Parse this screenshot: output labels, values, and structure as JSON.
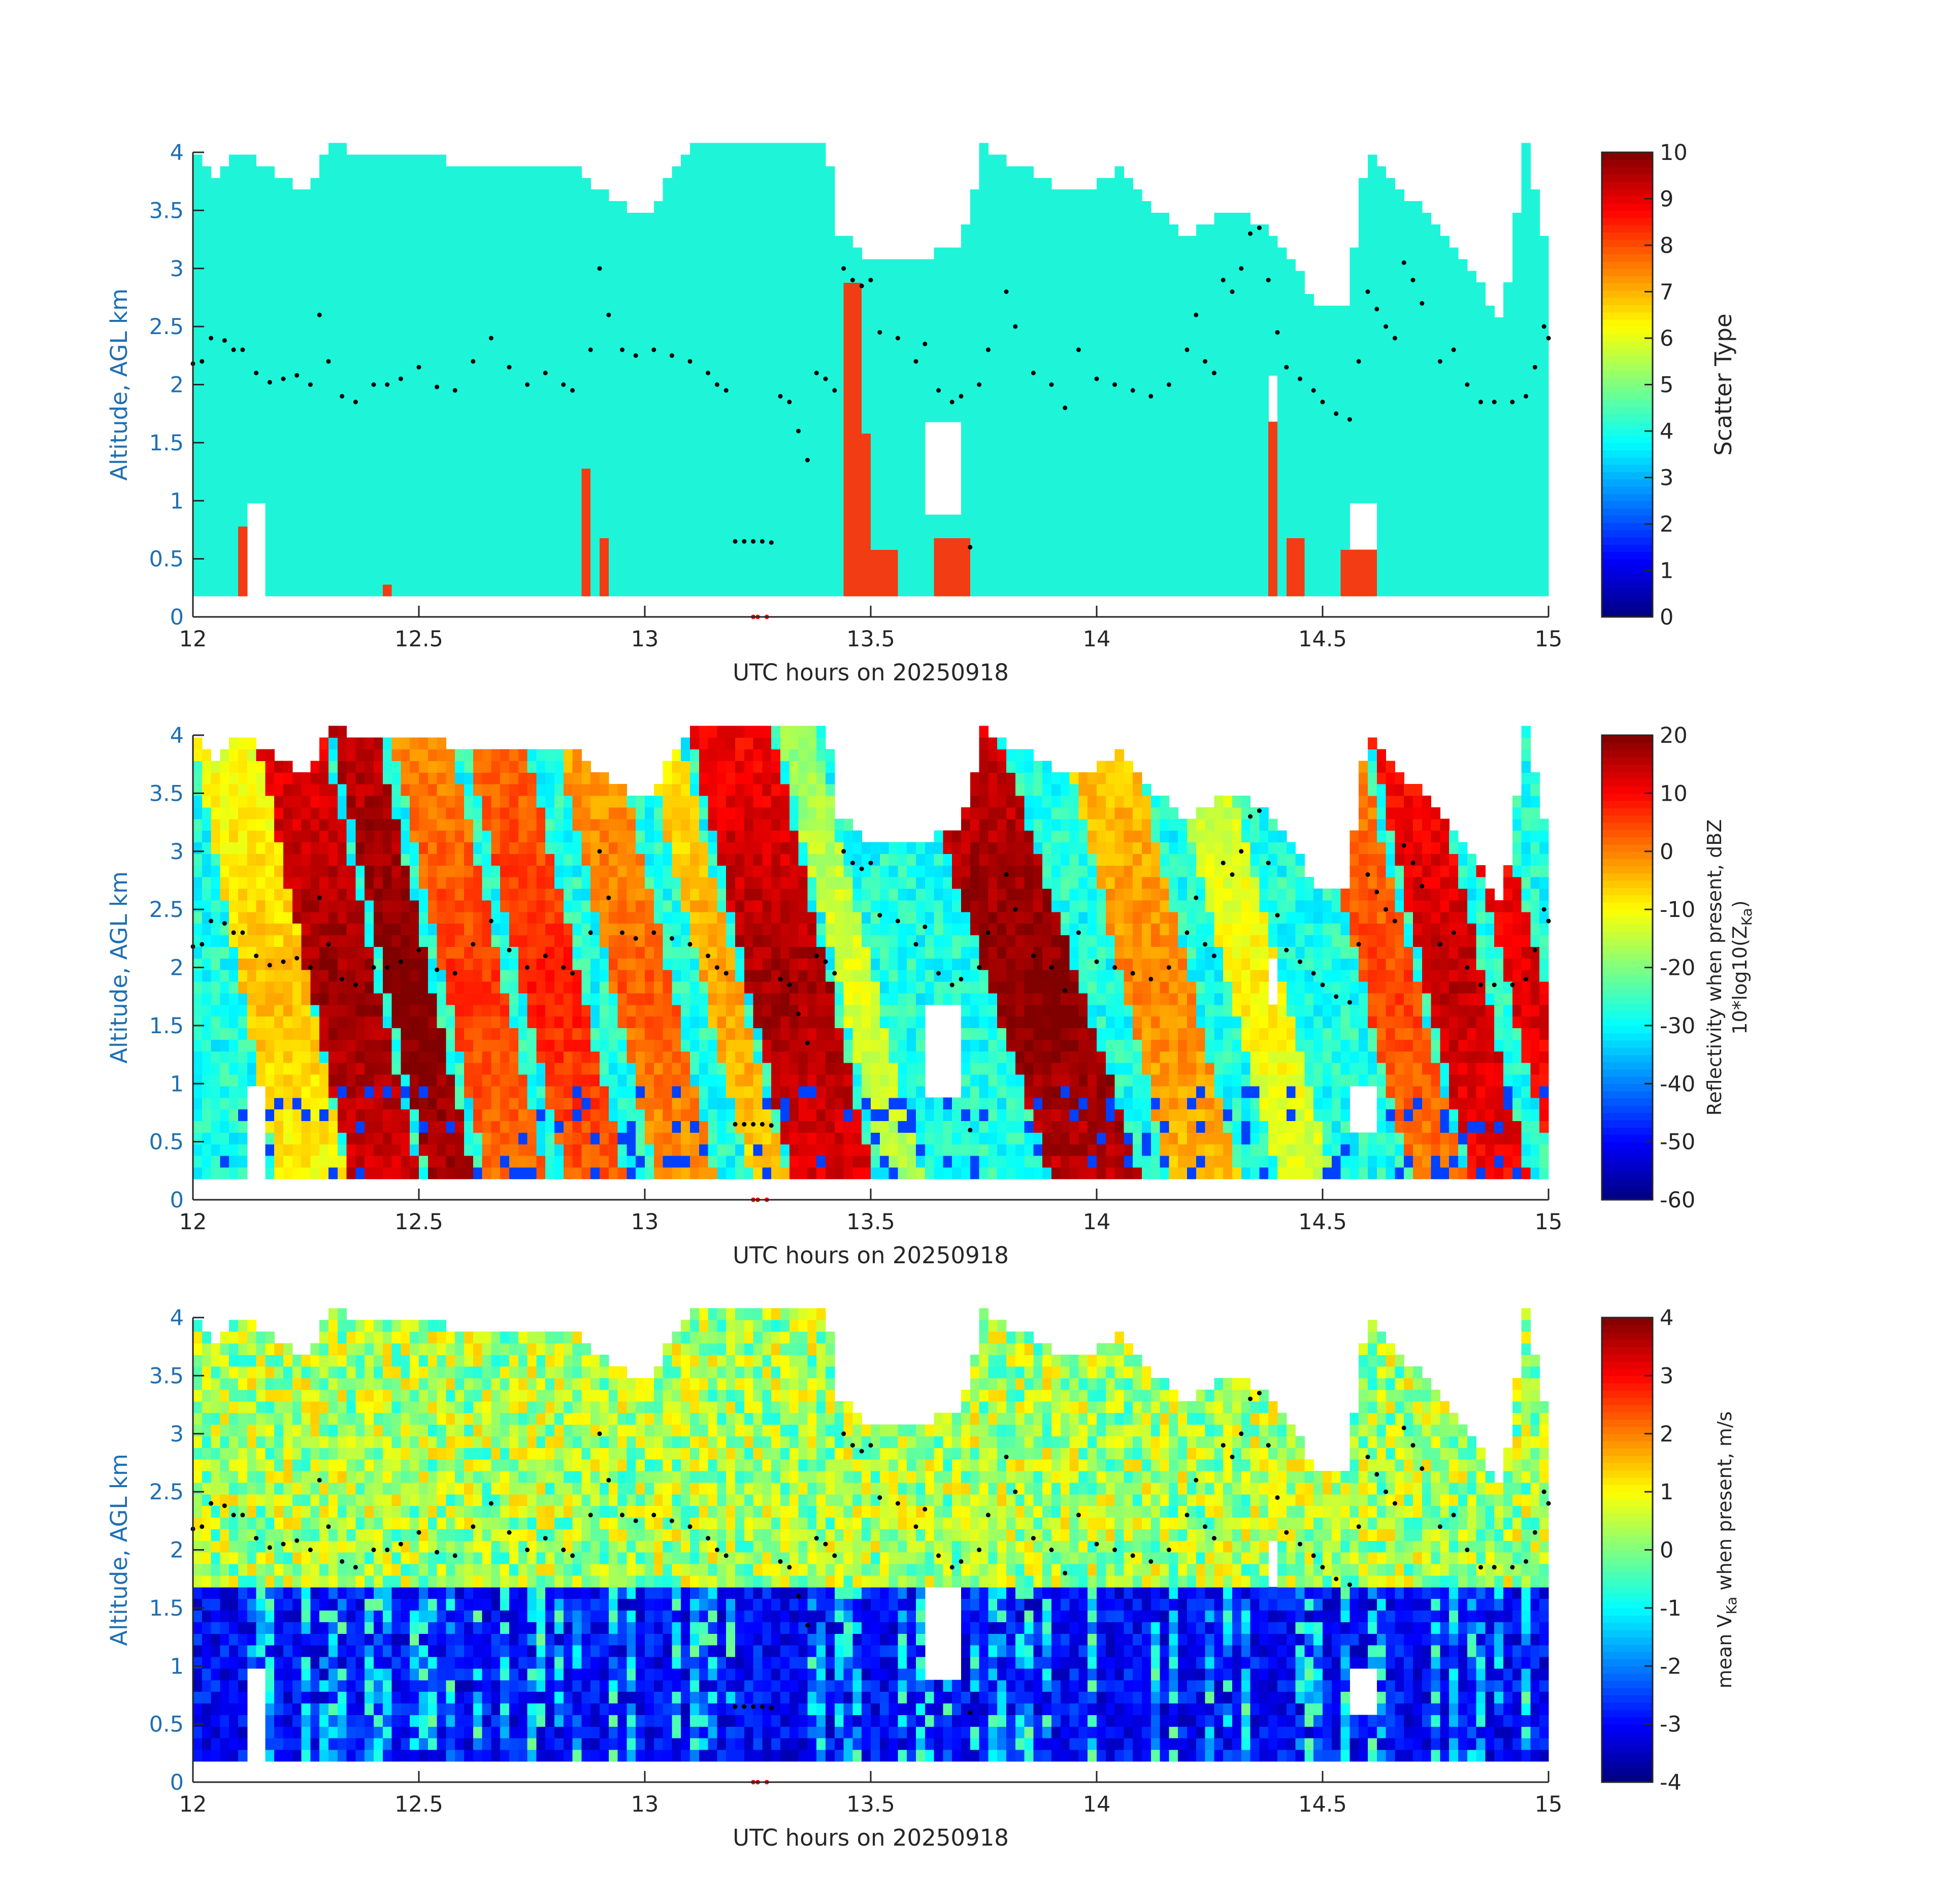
{
  "colors": {
    "axis": "#262626",
    "ylabel": "#1f6fb4",
    "scatter_background": "#1ef5d8",
    "scatter_drizzle": "#f23c14",
    "marker_dots": "#000000",
    "time_marks": "#ff0000"
  },
  "colormap": "jet",
  "chart_data": [
    {
      "type": "heatmap",
      "field": "scatter_type",
      "xlabel": "UTC hours on 20250918",
      "ylabel": "Altitude, AGL km",
      "xlim": [
        12,
        15
      ],
      "ylim": [
        0,
        4
      ],
      "xticks": [
        "12",
        "12.5",
        "13",
        "13.5",
        "14",
        "14.5",
        "15"
      ],
      "yticks": [
        "0",
        "0.5",
        "1",
        "1.5",
        "2",
        "2.5",
        "3",
        "3.5",
        "4"
      ],
      "colorbar": {
        "label": "Scatter Type",
        "label_sub": "",
        "label_line2": "",
        "range": [
          0,
          10
        ],
        "ticks": [
          "0",
          "1",
          "2",
          "3",
          "4",
          "5",
          "6",
          "7",
          "8",
          "9",
          "10"
        ]
      },
      "background_value": 3.8,
      "cloud_top_km": [
        [
          12.0,
          4.0
        ],
        [
          12.05,
          3.7
        ],
        [
          12.1,
          4.0
        ],
        [
          12.25,
          3.6
        ],
        [
          12.3,
          4.0
        ],
        [
          12.75,
          3.8
        ],
        [
          12.85,
          3.8
        ],
        [
          12.95,
          3.5
        ],
        [
          13.0,
          3.4
        ],
        [
          13.1,
          4.0
        ],
        [
          13.4,
          4.0
        ],
        [
          13.45,
          3.2
        ],
        [
          13.5,
          3.0
        ],
        [
          13.6,
          3.0
        ],
        [
          13.7,
          3.2
        ],
        [
          13.75,
          4.0
        ],
        [
          13.95,
          3.6
        ],
        [
          14.05,
          3.8
        ],
        [
          14.2,
          3.2
        ],
        [
          14.3,
          3.5
        ],
        [
          14.4,
          3.2
        ],
        [
          14.5,
          2.6
        ],
        [
          14.55,
          2.6
        ],
        [
          14.6,
          4.0
        ],
        [
          14.75,
          3.3
        ],
        [
          14.85,
          2.8
        ],
        [
          14.9,
          2.5
        ],
        [
          14.95,
          4.0
        ],
        [
          15.0,
          3.0
        ]
      ],
      "gaps": [
        [
          12.12,
          12.15,
          0.0,
          1.0
        ],
        [
          13.43,
          13.46,
          3.3,
          4.0
        ],
        [
          13.62,
          13.7,
          0.9,
          1.7
        ],
        [
          14.38,
          14.39,
          1.7,
          2.1
        ],
        [
          14.57,
          14.62,
          0.6,
          1.0
        ]
      ],
      "drizzle_columns": [
        [
          12.1,
          12.12,
          0.2,
          0.8
        ],
        [
          12.12,
          12.14,
          0.2,
          0.35
        ],
        [
          12.42,
          12.44,
          0.2,
          0.25
        ],
        [
          12.87,
          12.88,
          0.2,
          1.25
        ],
        [
          12.9,
          12.92,
          0.2,
          0.7
        ],
        [
          13.45,
          13.47,
          0.2,
          2.85
        ],
        [
          13.48,
          13.5,
          0.2,
          1.55
        ],
        [
          13.5,
          13.55,
          0.2,
          0.6
        ],
        [
          13.65,
          13.72,
          0.2,
          0.65
        ],
        [
          14.38,
          14.4,
          0.2,
          1.65
        ],
        [
          14.43,
          14.45,
          0.2,
          0.65
        ],
        [
          14.55,
          14.62,
          0.2,
          0.6
        ]
      ],
      "markers_km": [
        [
          12.0,
          2.18
        ],
        [
          12.02,
          2.2
        ],
        [
          12.04,
          2.4
        ],
        [
          12.07,
          2.38
        ],
        [
          12.09,
          2.3
        ],
        [
          12.11,
          2.3
        ],
        [
          12.14,
          2.1
        ],
        [
          12.17,
          2.02
        ],
        [
          12.2,
          2.05
        ],
        [
          12.23,
          2.08
        ],
        [
          12.26,
          2.0
        ],
        [
          12.28,
          2.6
        ],
        [
          12.3,
          2.2
        ],
        [
          12.33,
          1.9
        ],
        [
          12.36,
          1.85
        ],
        [
          12.4,
          2.0
        ],
        [
          12.43,
          2.0
        ],
        [
          12.46,
          2.05
        ],
        [
          12.5,
          2.15
        ],
        [
          12.54,
          1.98
        ],
        [
          12.58,
          1.95
        ],
        [
          12.62,
          2.2
        ],
        [
          12.66,
          2.4
        ],
        [
          12.7,
          2.15
        ],
        [
          12.74,
          2.0
        ],
        [
          12.78,
          2.1
        ],
        [
          12.82,
          2.0
        ],
        [
          12.84,
          1.95
        ],
        [
          12.88,
          2.3
        ],
        [
          12.9,
          3.0
        ],
        [
          12.92,
          2.6
        ],
        [
          12.95,
          2.3
        ],
        [
          12.98,
          2.25
        ],
        [
          13.02,
          2.3
        ],
        [
          13.06,
          2.25
        ],
        [
          13.1,
          2.2
        ],
        [
          13.14,
          2.1
        ],
        [
          13.16,
          2.0
        ],
        [
          13.18,
          1.95
        ],
        [
          13.2,
          0.65
        ],
        [
          13.22,
          0.65
        ],
        [
          13.24,
          0.65
        ],
        [
          13.26,
          0.65
        ],
        [
          13.28,
          0.64
        ],
        [
          13.3,
          1.9
        ],
        [
          13.32,
          1.85
        ],
        [
          13.34,
          1.6
        ],
        [
          13.36,
          1.35
        ],
        [
          13.38,
          2.1
        ],
        [
          13.4,
          2.05
        ],
        [
          13.42,
          1.95
        ],
        [
          13.44,
          3.0
        ],
        [
          13.46,
          2.9
        ],
        [
          13.48,
          2.85
        ],
        [
          13.5,
          2.9
        ],
        [
          13.52,
          2.45
        ],
        [
          13.56,
          2.4
        ],
        [
          13.6,
          2.2
        ],
        [
          13.62,
          2.35
        ],
        [
          13.65,
          1.95
        ],
        [
          13.68,
          1.85
        ],
        [
          13.7,
          1.9
        ],
        [
          13.72,
          0.6
        ],
        [
          13.74,
          2.0
        ],
        [
          13.76,
          2.3
        ],
        [
          13.8,
          2.8
        ],
        [
          13.82,
          2.5
        ],
        [
          13.86,
          2.1
        ],
        [
          13.9,
          2.0
        ],
        [
          13.93,
          1.8
        ],
        [
          13.96,
          2.3
        ],
        [
          14.0,
          2.05
        ],
        [
          14.04,
          2.0
        ],
        [
          14.08,
          1.95
        ],
        [
          14.12,
          1.9
        ],
        [
          14.16,
          2.0
        ],
        [
          14.2,
          2.3
        ],
        [
          14.22,
          2.6
        ],
        [
          14.24,
          2.2
        ],
        [
          14.26,
          2.1
        ],
        [
          14.28,
          2.9
        ],
        [
          14.3,
          2.8
        ],
        [
          14.32,
          3.0
        ],
        [
          14.34,
          3.3
        ],
        [
          14.36,
          3.35
        ],
        [
          14.38,
          2.9
        ],
        [
          14.4,
          2.45
        ],
        [
          14.42,
          2.15
        ],
        [
          14.45,
          2.05
        ],
        [
          14.48,
          1.95
        ],
        [
          14.5,
          1.85
        ],
        [
          14.53,
          1.75
        ],
        [
          14.56,
          1.7
        ],
        [
          14.58,
          2.2
        ],
        [
          14.6,
          2.8
        ],
        [
          14.62,
          2.65
        ],
        [
          14.64,
          2.5
        ],
        [
          14.66,
          2.4
        ],
        [
          14.68,
          3.05
        ],
        [
          14.7,
          2.9
        ],
        [
          14.72,
          2.7
        ],
        [
          14.76,
          2.2
        ],
        [
          14.79,
          2.3
        ],
        [
          14.82,
          2.0
        ],
        [
          14.85,
          1.85
        ],
        [
          14.88,
          1.85
        ],
        [
          14.92,
          1.85
        ],
        [
          14.95,
          1.9
        ],
        [
          14.97,
          2.15
        ],
        [
          14.99,
          2.5
        ],
        [
          15.0,
          2.4
        ]
      ],
      "time_marks": [
        13.24,
        13.25,
        13.27
      ]
    },
    {
      "type": "heatmap",
      "field": "reflectivity_dBZ",
      "xlabel": "UTC hours on 20250918",
      "ylabel": "Altitude, AGL km",
      "xlim": [
        12,
        15
      ],
      "ylim": [
        0,
        4
      ],
      "xticks": [
        "12",
        "12.5",
        "13",
        "13.5",
        "14",
        "14.5",
        "15"
      ],
      "yticks": [
        "0",
        "0.5",
        "1",
        "1.5",
        "2",
        "2.5",
        "3",
        "3.5",
        "4"
      ],
      "colorbar": {
        "label": "Reflectivity when present, dBZ",
        "label_sub": "Ka",
        "label_line2": "10*log10(Z",
        "range": [
          -60,
          20
        ],
        "ticks": [
          "-60",
          "-50",
          "-40",
          "-30",
          "-20",
          "-10",
          "0",
          "10",
          "20"
        ]
      },
      "streaks": [
        [
          12.1,
          12.25,
          -8,
          -2
        ],
        [
          12.25,
          12.4,
          15,
          -1.8
        ],
        [
          12.42,
          12.52,
          18,
          -1.8
        ],
        [
          12.55,
          12.68,
          3,
          -1.8
        ],
        [
          12.72,
          12.85,
          5,
          -1.7
        ],
        [
          12.92,
          13.05,
          0,
          -1.7
        ],
        [
          13.12,
          13.2,
          -5,
          -1.6
        ],
        [
          13.22,
          13.4,
          14,
          -1.7
        ],
        [
          13.42,
          13.5,
          -15,
          -1.6
        ],
        [
          13.75,
          13.95,
          17,
          -1.2
        ],
        [
          14.05,
          14.2,
          -3,
          -1.6
        ],
        [
          14.28,
          14.4,
          -12,
          -1.5
        ],
        [
          14.58,
          14.7,
          2,
          -1.6
        ],
        [
          14.72,
          14.85,
          12,
          -1.7
        ],
        [
          14.9,
          14.98,
          10,
          -1.6
        ]
      ],
      "base_value": -28,
      "markers": "same_as_scatter_type"
    },
    {
      "type": "heatmap",
      "field": "mean_velocity_ms",
      "xlabel": "UTC hours on 20250918",
      "ylabel": "Altitude, AGL km",
      "xlim": [
        12,
        15
      ],
      "ylim": [
        0,
        4
      ],
      "xticks": [
        "12",
        "12.5",
        "13",
        "13.5",
        "14",
        "14.5",
        "15"
      ],
      "yticks": [
        "0",
        "0.5",
        "1",
        "1.5",
        "2",
        "2.5",
        "3",
        "3.5",
        "4"
      ],
      "colorbar": {
        "label": "mean V",
        "label_sub": "Ka",
        "label_after": " when present, m/s",
        "range": [
          -4,
          4
        ],
        "ticks": [
          "-4",
          "-3",
          "-2",
          "-1",
          "0",
          "1",
          "2",
          "3",
          "4"
        ]
      },
      "melting_layer_km": 1.7,
      "above_value": 0.3,
      "below_value": -3.6,
      "markers": "same_as_scatter_type"
    }
  ]
}
